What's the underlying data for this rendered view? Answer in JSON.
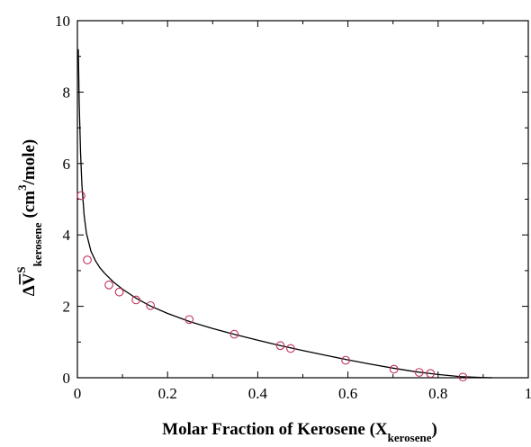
{
  "chart_data": {
    "type": "scatter",
    "xlim": [
      0,
      1
    ],
    "ylim": [
      0,
      10
    ],
    "x_ticks": [
      "0",
      "0.2",
      "0.4",
      "0.6",
      "0.8",
      "1"
    ],
    "y_ticks": [
      "0",
      "2",
      "4",
      "6",
      "8",
      "10"
    ],
    "xlabel": {
      "main": "Molar Fraction of Kerosene (X",
      "sub": "kerosene",
      "close": ")"
    },
    "ylabel": {
      "main": "ΔV",
      "sup": "S",
      "sub": "kerosene",
      "units_open": "(cm",
      "units_sup": "3",
      "units_close": "/mole)"
    },
    "grid": false,
    "legend": "none",
    "colors": {
      "points": "#c0305a",
      "fit": "#000000"
    },
    "series": [
      {
        "kind": "points",
        "x": [
          0.008,
          0.022,
          0.07,
          0.093,
          0.13,
          0.162,
          0.248,
          0.348,
          0.45,
          0.473,
          0.595,
          0.702,
          0.758,
          0.783,
          0.855
        ],
        "y": [
          5.1,
          3.3,
          2.6,
          2.4,
          2.18,
          2.02,
          1.63,
          1.22,
          0.9,
          0.82,
          0.49,
          0.24,
          0.15,
          0.12,
          0.02
        ]
      },
      {
        "kind": "fit-curve",
        "x": [
          0.002,
          0.004,
          0.007,
          0.01,
          0.015,
          0.02,
          0.03,
          0.04,
          0.05,
          0.06,
          0.08,
          0.1,
          0.13,
          0.16,
          0.2,
          0.25,
          0.3,
          0.35,
          0.4,
          0.45,
          0.5,
          0.55,
          0.6,
          0.65,
          0.7,
          0.75,
          0.8,
          0.85,
          0.9,
          0.92
        ],
        "y": [
          9.2,
          7.7,
          6.3,
          5.4,
          4.55,
          4.05,
          3.55,
          3.28,
          3.08,
          2.93,
          2.68,
          2.48,
          2.23,
          2.02,
          1.8,
          1.57,
          1.38,
          1.21,
          1.05,
          0.9,
          0.76,
          0.63,
          0.5,
          0.38,
          0.27,
          0.17,
          0.09,
          0.03,
          0.005,
          0.0
        ]
      }
    ]
  }
}
